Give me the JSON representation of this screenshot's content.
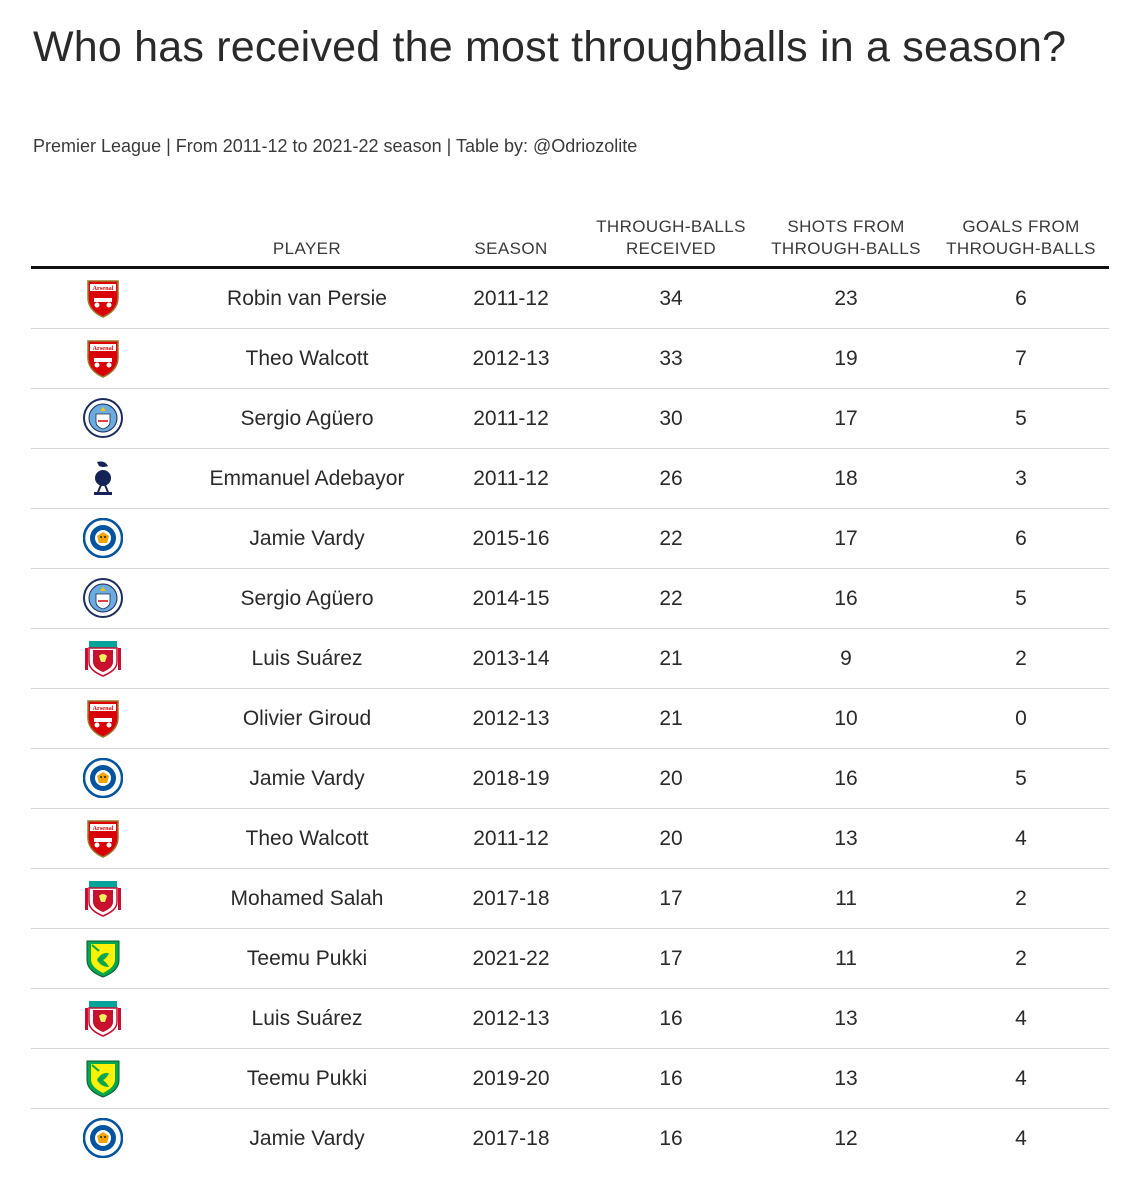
{
  "title": "Who has received the most throughballs in a season?",
  "subtitle": "Premier League | From 2011-12 to 2021-22 season | Table by: @Odriozolite",
  "colors": {
    "arsenal": "#db0007",
    "mancity": "#6cabdd",
    "tottenham": "#132257",
    "leicester": "#0053a0",
    "liverpool": "#c8102e",
    "norwich": "#00a650",
    "norwich_yellow": "#fff200"
  },
  "chart_data": {
    "type": "table",
    "columns": [
      {
        "key": "club",
        "label": ""
      },
      {
        "key": "player",
        "label": "PLAYER"
      },
      {
        "key": "season",
        "label": "SEASON"
      },
      {
        "key": "through_balls",
        "label": "THROUGH-BALLS RECEIVED"
      },
      {
        "key": "shots",
        "label": "SHOTS FROM THROUGH-BALLS"
      },
      {
        "key": "goals",
        "label": "GOALS FROM THROUGH-BALLS"
      }
    ],
    "rows": [
      {
        "club": "arsenal",
        "player": "Robin van Persie",
        "season": "2011-12",
        "through_balls": 34,
        "shots": 23,
        "goals": 6
      },
      {
        "club": "arsenal",
        "player": "Theo Walcott",
        "season": "2012-13",
        "through_balls": 33,
        "shots": 19,
        "goals": 7
      },
      {
        "club": "mancity",
        "player": "Sergio Agüero",
        "season": "2011-12",
        "through_balls": 30,
        "shots": 17,
        "goals": 5
      },
      {
        "club": "tottenham",
        "player": "Emmanuel Adebayor",
        "season": "2011-12",
        "through_balls": 26,
        "shots": 18,
        "goals": 3
      },
      {
        "club": "leicester",
        "player": "Jamie Vardy",
        "season": "2015-16",
        "through_balls": 22,
        "shots": 17,
        "goals": 6
      },
      {
        "club": "mancity",
        "player": "Sergio Agüero",
        "season": "2014-15",
        "through_balls": 22,
        "shots": 16,
        "goals": 5
      },
      {
        "club": "liverpool",
        "player": "Luis Suárez",
        "season": "2013-14",
        "through_balls": 21,
        "shots": 9,
        "goals": 2
      },
      {
        "club": "arsenal",
        "player": "Olivier Giroud",
        "season": "2012-13",
        "through_balls": 21,
        "shots": 10,
        "goals": 0
      },
      {
        "club": "leicester",
        "player": "Jamie Vardy",
        "season": "2018-19",
        "through_balls": 20,
        "shots": 16,
        "goals": 5
      },
      {
        "club": "arsenal",
        "player": "Theo Walcott",
        "season": "2011-12",
        "through_balls": 20,
        "shots": 13,
        "goals": 4
      },
      {
        "club": "liverpool",
        "player": "Mohamed Salah",
        "season": "2017-18",
        "through_balls": 17,
        "shots": 11,
        "goals": 2
      },
      {
        "club": "norwich",
        "player": "Teemu Pukki",
        "season": "2021-22",
        "through_balls": 17,
        "shots": 11,
        "goals": 2
      },
      {
        "club": "liverpool",
        "player": "Luis Suárez",
        "season": "2012-13",
        "through_balls": 16,
        "shots": 13,
        "goals": 4
      },
      {
        "club": "norwich",
        "player": "Teemu Pukki",
        "season": "2019-20",
        "through_balls": 16,
        "shots": 13,
        "goals": 4
      },
      {
        "club": "leicester",
        "player": "Jamie Vardy",
        "season": "2017-18",
        "through_balls": 16,
        "shots": 12,
        "goals": 4
      }
    ]
  },
  "logo_text": {
    "arsenal": "Arsenal"
  }
}
